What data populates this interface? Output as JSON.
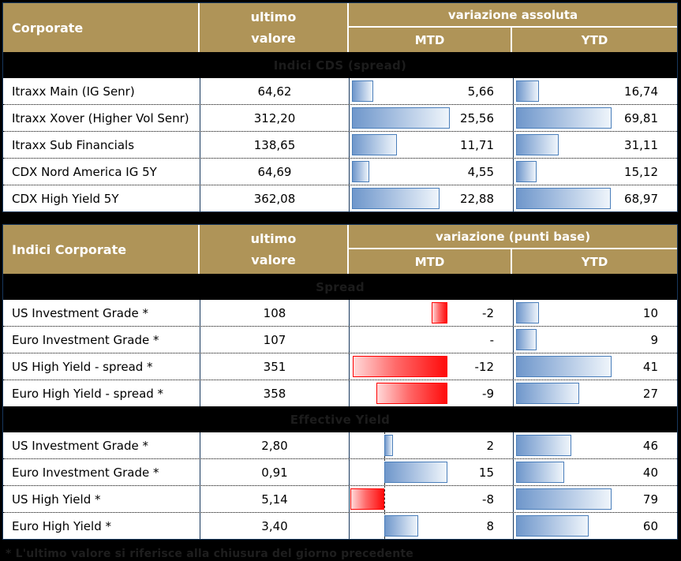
{
  "colors": {
    "header_gold": "#AF9458",
    "border_navy": "#17375D",
    "bar_blue_border": "#4A7EBA",
    "bar_blue_fill_start": "#6F97CB",
    "bar_blue_fill_end": "#EFF5FB",
    "bar_red_border": "#FF0000",
    "bar_red_fill_start": "#FFD9D9",
    "bar_red_fill_end": "#FF0B0B",
    "band_background": "#000000",
    "row_background": "#FFFFFF"
  },
  "footnote": "* L'ultimo valore si riferisce alla chiusura del giorno precedente",
  "tables": [
    {
      "header": {
        "title": "Corporate",
        "ultimo_line1": "ultimo",
        "ultimo_line2": "valore",
        "group": "variazione assoluta",
        "mtd": "MTD",
        "ytd": "YTD"
      },
      "sections": [
        {
          "band": "Indici CDS (spread)",
          "mtd_bar": {
            "axis_pct": 1.4,
            "unit_pct": 2.344,
            "axis_line": false
          },
          "ytd_bar": {
            "axis_pct": 1.4,
            "unit_pct": 0.838,
            "axis_line": false
          },
          "rows": [
            {
              "label": "Itraxx Main (IG Senr)",
              "value": "64,62",
              "mtd": {
                "text": "5,66",
                "num": 5.66
              },
              "ytd": {
                "text": "16,74",
                "num": 16.74
              }
            },
            {
              "label": "Itraxx Xover (Higher Vol Senr)",
              "value": "312,20",
              "mtd": {
                "text": "25,56",
                "num": 25.56
              },
              "ytd": {
                "text": "69,81",
                "num": 69.81
              }
            },
            {
              "label": "Itraxx Sub Financials",
              "value": "138,65",
              "mtd": {
                "text": "11,71",
                "num": 11.71
              },
              "ytd": {
                "text": "31,11",
                "num": 31.11
              }
            },
            {
              "label": "CDX Nord America IG 5Y",
              "value": "64,69",
              "mtd": {
                "text": "4,55",
                "num": 4.55
              },
              "ytd": {
                "text": "15,12",
                "num": 15.12
              }
            },
            {
              "label": "CDX High Yield 5Y",
              "value": "362,08",
              "mtd": {
                "text": "22,88",
                "num": 22.88
              },
              "ytd": {
                "text": "68,97",
                "num": 68.97
              }
            }
          ]
        }
      ]
    },
    {
      "header": {
        "title": "Indici Corporate",
        "ultimo_line1": "ultimo",
        "ultimo_line2": "valore",
        "group": "variazione (punti base)",
        "mtd": "MTD",
        "ytd": "YTD"
      },
      "sections": [
        {
          "band": "Spread",
          "mtd_bar": {
            "axis_pct": 60.0,
            "unit_pct": 4.83,
            "axis_line": false
          },
          "ytd_bar": {
            "axis_pct": 1.4,
            "unit_pct": 1.427,
            "axis_line": false
          },
          "rows": [
            {
              "label": "US Investment Grade *",
              "value": "108",
              "mtd": {
                "text": "-2",
                "num": -2
              },
              "ytd": {
                "text": "10",
                "num": 10
              }
            },
            {
              "label": "Euro Investment Grade *",
              "value": "107",
              "mtd": {
                "text": "-",
                "num": null
              },
              "ytd": {
                "text": "9",
                "num": 9
              }
            },
            {
              "label": "US High Yield  - spread *",
              "value": "351",
              "mtd": {
                "text": "-12",
                "num": -12
              },
              "ytd": {
                "text": "41",
                "num": 41
              }
            },
            {
              "label": "Euro High Yield  - spread *",
              "value": "358",
              "mtd": {
                "text": "-9",
                "num": -9
              },
              "ytd": {
                "text": "27",
                "num": 27
              }
            }
          ]
        },
        {
          "band": "Effective Yield",
          "mtd_bar": {
            "axis_pct": 21.3,
            "unit_pct": 2.577,
            "axis_line": true
          },
          "ytd_bar": {
            "axis_pct": 1.4,
            "unit_pct": 0.74,
            "axis_line": false
          },
          "rows": [
            {
              "label": "US Investment Grade *",
              "value": "2,80",
              "mtd": {
                "text": "2",
                "num": 2
              },
              "ytd": {
                "text": "46",
                "num": 46
              }
            },
            {
              "label": "Euro Investment Grade *",
              "value": "0,91",
              "mtd": {
                "text": "15",
                "num": 15
              },
              "ytd": {
                "text": "40",
                "num": 40
              }
            },
            {
              "label": "US High Yield *",
              "value": "5,14",
              "mtd": {
                "text": "-8",
                "num": -8
              },
              "ytd": {
                "text": "79",
                "num": 79
              }
            },
            {
              "label": "Euro High Yield *",
              "value": "3,40",
              "mtd": {
                "text": "8",
                "num": 8
              },
              "ytd": {
                "text": "60",
                "num": 60
              }
            }
          ]
        }
      ]
    }
  ],
  "chart_data": [
    {
      "type": "table",
      "title": "Corporate",
      "columns": [
        "Corporate",
        "ultimo valore",
        "variazione assoluta MTD",
        "variazione assoluta YTD"
      ],
      "sections": [
        {
          "name": "Indici CDS (spread)",
          "rows": [
            [
              "Itraxx Main (IG Senr)",
              64.62,
              5.66,
              16.74
            ],
            [
              "Itraxx Xover (Higher Vol Senr)",
              312.2,
              25.56,
              69.81
            ],
            [
              "Itraxx Sub Financials",
              138.65,
              11.71,
              31.11
            ],
            [
              "CDX Nord America IG 5Y",
              64.69,
              4.55,
              15.12
            ],
            [
              "CDX High Yield 5Y",
              362.08,
              22.88,
              68.97
            ]
          ]
        }
      ],
      "layout_hints": {
        "bars": "MTD/YTD cells contain blue left-anchored gradient data bars proportional to value"
      }
    },
    {
      "type": "table",
      "title": "Indici Corporate",
      "columns": [
        "Indici Corporate",
        "ultimo valore",
        "variazione (punti base) MTD",
        "variazione (punti base) YTD"
      ],
      "sections": [
        {
          "name": "Spread",
          "rows": [
            [
              "US Investment Grade *",
              108,
              -2,
              10
            ],
            [
              "Euro Investment Grade *",
              107,
              null,
              9
            ],
            [
              "US High Yield  - spread *",
              351,
              -12,
              41
            ],
            [
              "Euro High Yield  - spread *",
              358,
              -9,
              27
            ]
          ]
        },
        {
          "name": "Effective Yield",
          "rows": [
            [
              "US Investment Grade *",
              2.8,
              2,
              46
            ],
            [
              "Euro Investment Grade *",
              0.91,
              15,
              40
            ],
            [
              "US High Yield *",
              5.14,
              -8,
              79
            ],
            [
              "Euro High Yield *",
              3.4,
              8,
              60
            ]
          ]
        }
      ],
      "layout_hints": {
        "bars": "negative MTD values drawn as red gradient bars extending left of axis; positive values as blue bars; Effective Yield MTD column shows dashed zero-axis line"
      }
    }
  ]
}
